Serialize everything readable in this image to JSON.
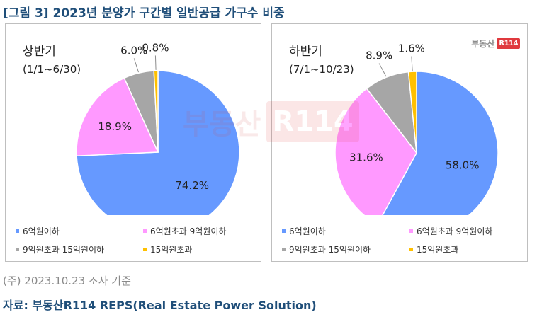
{
  "figure": {
    "title": "[그림 3] 2023년 분양가 구간별 일반공급 가구수 비중",
    "note": "(주) 2023.10.23 조사 기준",
    "source": "자료: 부동산R114  REPS(Real Estate Power Solution)"
  },
  "logo": {
    "text": "부동산",
    "box": "R114"
  },
  "watermark": {
    "text": "부동산",
    "box": "R114"
  },
  "colors": {
    "title": "#1f4e79",
    "slices": [
      "#6699ff",
      "#ff99ff",
      "#a6a6a6",
      "#ffc000"
    ]
  },
  "chart_data": [
    {
      "type": "pie",
      "title": "상반기",
      "subtitle": "(1/1~6/30)",
      "categories": [
        "6억원이하",
        "6억원초과  9억원이하",
        "9억원초과  15억원이하",
        "15억원초과"
      ],
      "values": [
        74.2,
        18.9,
        6.0,
        0.8
      ],
      "data_labels": [
        "74.2%",
        "18.9%",
        "6.0%",
        "0.8%"
      ],
      "start_angle_deg": 0,
      "direction": "clockwise",
      "legend_position": "bottom"
    },
    {
      "type": "pie",
      "title": "하반기",
      "subtitle": "(7/1~10/23)",
      "categories": [
        "6억원이하",
        "6억원초과  9억원이하",
        "9억원초과  15억원이하",
        "15억원초과"
      ],
      "values": [
        58.0,
        31.6,
        8.9,
        1.6
      ],
      "data_labels": [
        "58.0%",
        "31.6%",
        "8.9%",
        "1.6%"
      ],
      "start_angle_deg": 0,
      "direction": "clockwise",
      "legend_position": "bottom"
    }
  ]
}
